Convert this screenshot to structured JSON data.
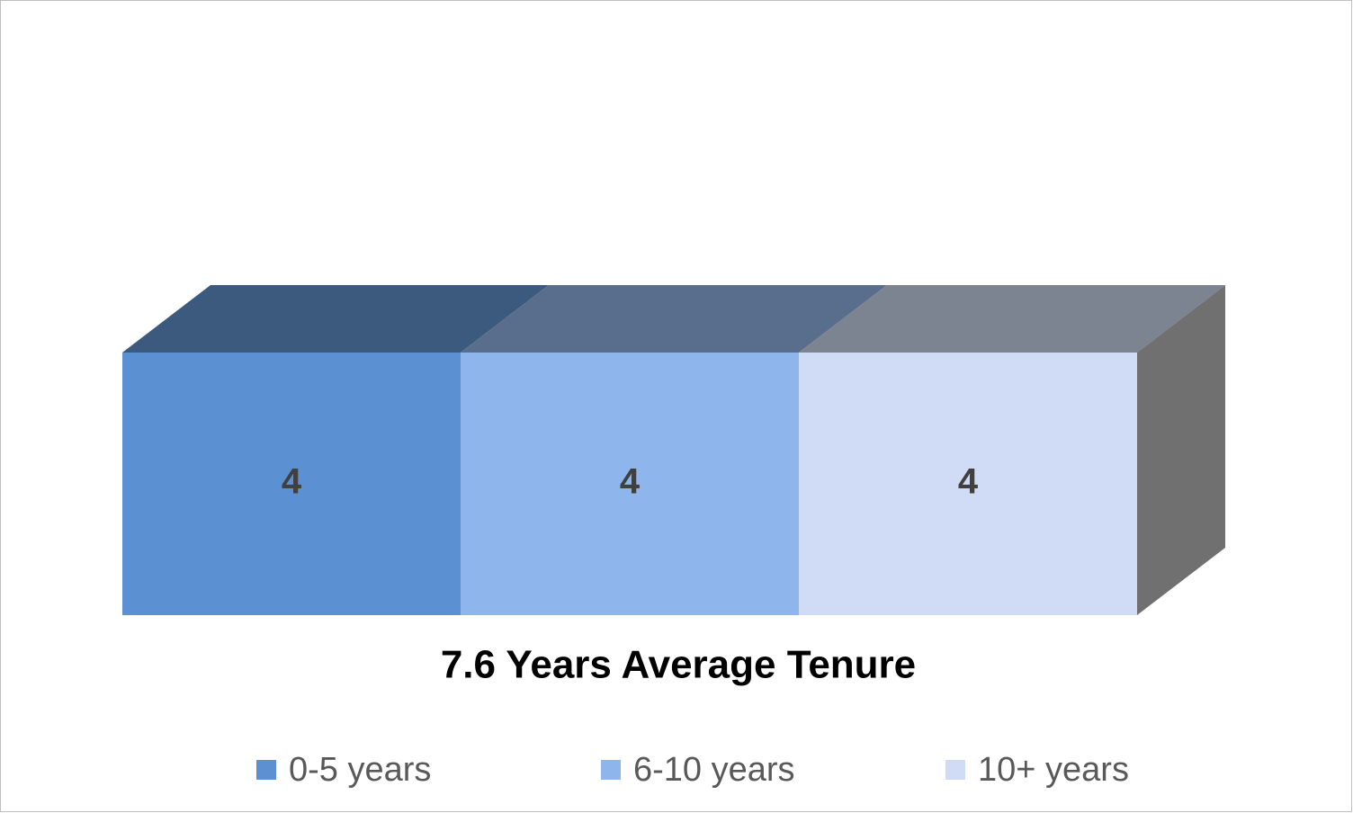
{
  "chart_data": {
    "type": "bar",
    "orientation": "horizontal",
    "stacked": true,
    "three_d": true,
    "categories": [
      "7.6 Years Average Tenure"
    ],
    "series": [
      {
        "name": "0-5 years",
        "color": "#5b90d3",
        "values": [
          4
        ]
      },
      {
        "name": "6-10 years",
        "color": "#8eb5ec",
        "values": [
          4
        ]
      },
      {
        "name": "10+ years",
        "color": "#d0dcf6",
        "values": [
          4
        ]
      }
    ],
    "xlim": [
      0,
      12
    ],
    "legend": "bottom"
  }
}
